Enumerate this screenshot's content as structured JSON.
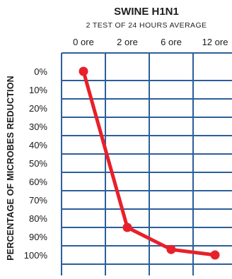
{
  "chart_data": {
    "type": "line",
    "title": "SWINE H1N1",
    "subtitle": "2 TEST OF 24 HOURS AVERAGE",
    "ylabel": "PERCENTAGE OF MICROBES REDUCTION",
    "xlabel": "",
    "categories": [
      "0 ore",
      "2 ore",
      "6 ore",
      "12 ore"
    ],
    "yticks": [
      "0%",
      "10%",
      "20%",
      "30%",
      "40%",
      "50%",
      "60%",
      "70%",
      "80%",
      "90%",
      "100%"
    ],
    "ylim": [
      0,
      100
    ],
    "y_inverted": true,
    "grid": true,
    "series": [
      {
        "values": [
          0,
          85,
          97,
          100
        ]
      }
    ],
    "colors": {
      "line": "#e8202a",
      "grid": "#2c5f9a",
      "text": "#1a1a1a"
    }
  }
}
